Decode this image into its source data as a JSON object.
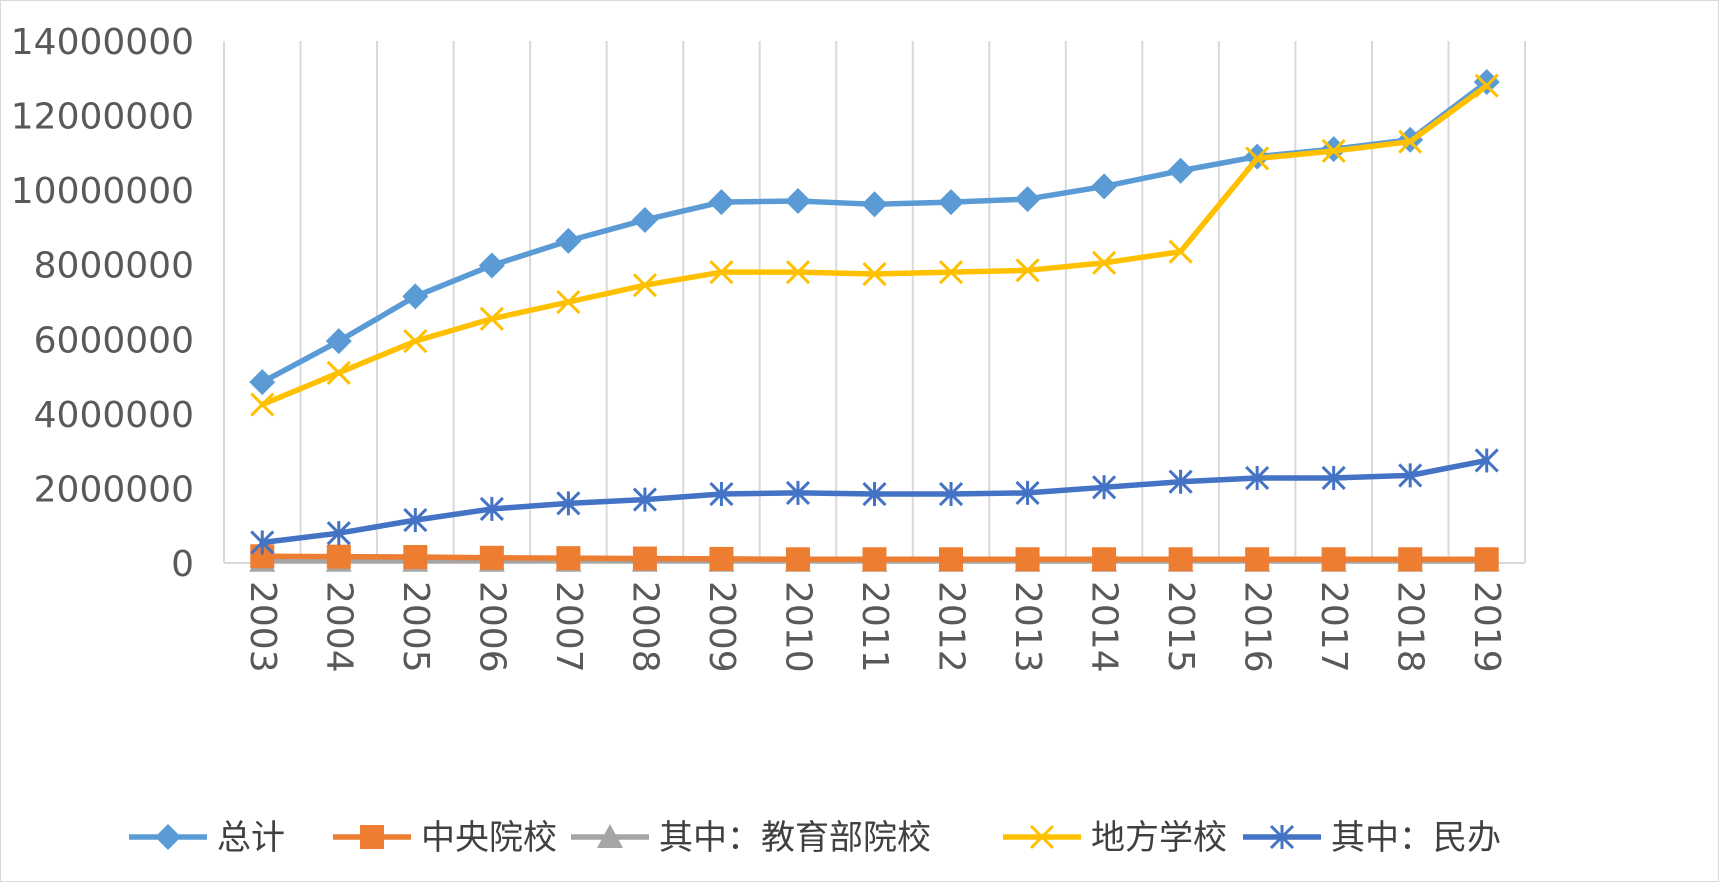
{
  "chart_data": {
    "type": "line",
    "title": "",
    "xlabel": "",
    "ylabel": "",
    "ylim": [
      0,
      14000000
    ],
    "yticks": [
      0,
      2000000,
      4000000,
      6000000,
      8000000,
      10000000,
      12000000,
      14000000
    ],
    "ytick_labels": [
      "0",
      "2000000",
      "4000000",
      "6000000",
      "8000000",
      "10000000",
      "12000000",
      "14000000"
    ],
    "grid": "vertical",
    "legend_position": "bottom",
    "categories": [
      "2003",
      "2004",
      "2005",
      "2006",
      "2007",
      "2008",
      "2009",
      "2010",
      "2011",
      "2012",
      "2013",
      "2014",
      "2015",
      "2016",
      "2017",
      "2018",
      "2019"
    ],
    "series": [
      {
        "name": "总计",
        "color": "#5b9bd5",
        "marker": "diamond",
        "values": [
          4850000,
          5950000,
          7150000,
          7980000,
          8640000,
          9200000,
          9680000,
          9710000,
          9620000,
          9680000,
          9760000,
          10100000,
          10520000,
          10900000,
          11100000,
          11350000,
          12900000
        ]
      },
      {
        "name": "中央院校",
        "color": "#ed7d31",
        "marker": "square",
        "values": [
          180000,
          170000,
          160000,
          140000,
          130000,
          120000,
          110000,
          100000,
          100000,
          100000,
          100000,
          100000,
          100000,
          100000,
          100000,
          100000,
          100000
        ]
      },
      {
        "name": "其中：教育部院校",
        "color": "#a5a5a5",
        "marker": "triangle",
        "values": [
          60000,
          60000,
          60000,
          60000,
          60000,
          60000,
          60000,
          60000,
          60000,
          60000,
          60000,
          60000,
          60000,
          60000,
          60000,
          60000,
          60000
        ]
      },
      {
        "name": "地方学校",
        "color": "#ffc000",
        "marker": "x",
        "values": [
          4250000,
          5100000,
          5950000,
          6550000,
          7000000,
          7450000,
          7800000,
          7800000,
          7750000,
          7800000,
          7850000,
          8050000,
          8350000,
          10850000,
          11050000,
          11300000,
          12800000
        ]
      },
      {
        "name": "其中：民办",
        "color": "#4472c4",
        "marker": "asterisk",
        "values": [
          550000,
          800000,
          1150000,
          1450000,
          1600000,
          1700000,
          1850000,
          1880000,
          1850000,
          1850000,
          1880000,
          2030000,
          2180000,
          2280000,
          2280000,
          2350000,
          2750000
        ]
      }
    ]
  }
}
